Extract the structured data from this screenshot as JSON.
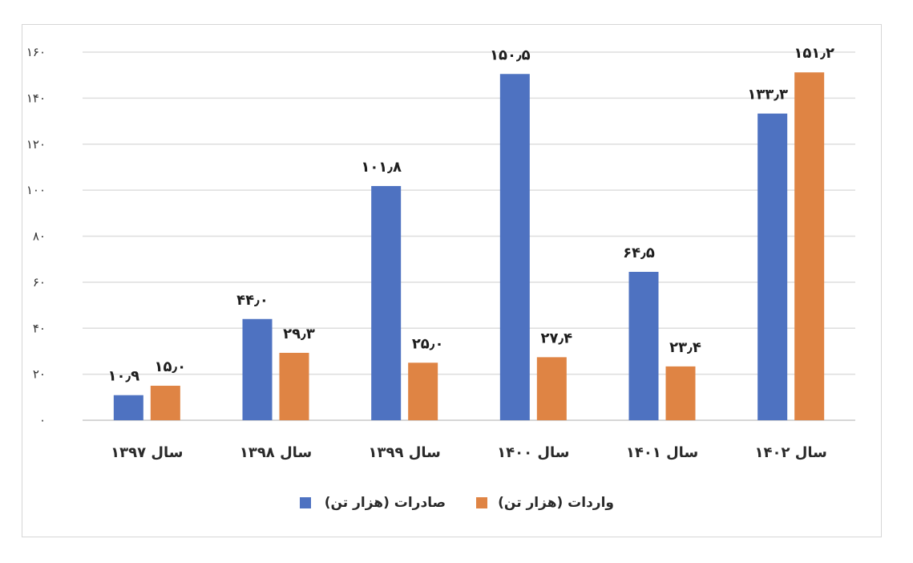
{
  "chart_data": {
    "type": "bar",
    "categories": [
      "سال ۱۳۹۷",
      "سال ۱۳۹۸",
      "سال ۱۳۹۹",
      "سال ۱۴۰۰",
      "سال ۱۴۰۱",
      "سال ۱۴۰۲"
    ],
    "series": [
      {
        "name": "صادرات (هزار تن)",
        "color": "#4e72c1",
        "values": [
          10.9,
          44.0,
          101.8,
          150.5,
          64.5,
          133.3
        ],
        "labels": [
          "۱۰٫۹",
          "۴۴٫۰",
          "۱۰۱٫۸",
          "۱۵۰٫۵",
          "۶۴٫۵",
          "۱۳۳٫۳"
        ]
      },
      {
        "name": "واردات (هزار تن)",
        "color": "#df8444",
        "values": [
          15.0,
          29.3,
          25.0,
          27.4,
          23.4,
          151.2
        ],
        "labels": [
          "۱۵٫۰",
          "۲۹٫۳",
          "۲۵٫۰",
          "۲۷٫۴",
          "۲۳٫۴",
          "۱۵۱٫۲"
        ]
      }
    ],
    "ylim": [
      0,
      160
    ],
    "yticks": [
      0,
      20,
      40,
      60,
      80,
      100,
      120,
      140,
      160
    ],
    "ytick_labels": [
      "۰",
      "۲۰",
      "۴۰",
      "۶۰",
      "۸۰",
      "۱۰۰",
      "۱۲۰",
      "۱۴۰",
      "۱۶۰"
    ],
    "grid": true,
    "legend_position": "bottom",
    "title": "",
    "xlabel": "",
    "ylabel": ""
  }
}
